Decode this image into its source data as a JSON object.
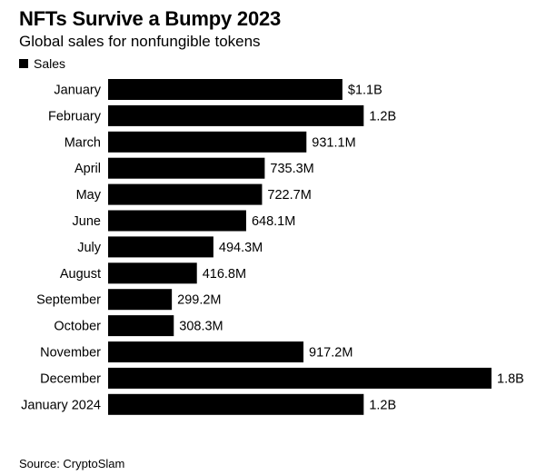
{
  "chart_data": {
    "type": "bar",
    "orientation": "horizontal",
    "title": "NFTs Survive a Bumpy 2023",
    "subtitle": "Global sales for nonfungible tokens",
    "legend": {
      "label": "Sales",
      "placement": "top-left"
    },
    "source": "Source: CryptoSlam",
    "grid": false,
    "xlim": [
      0,
      1.8
    ],
    "unit": "billion USD",
    "categories": [
      "January",
      "February",
      "March",
      "April",
      "May",
      "June",
      "July",
      "August",
      "September",
      "October",
      "November",
      "December",
      "January 2024"
    ],
    "series": [
      {
        "name": "Sales",
        "color": "#000000",
        "values": [
          1.1,
          1.2,
          0.9311,
          0.7353,
          0.7227,
          0.6481,
          0.4943,
          0.4168,
          0.2992,
          0.3083,
          0.9172,
          1.8,
          1.2
        ],
        "labels": [
          "$1.1B",
          "1.2B",
          "931.1M",
          "735.3M",
          "722.7M",
          "648.1M",
          "494.3M",
          "416.8M",
          "299.2M",
          "308.3M",
          "917.2M",
          "1.8B",
          "1.2B"
        ]
      }
    ]
  }
}
